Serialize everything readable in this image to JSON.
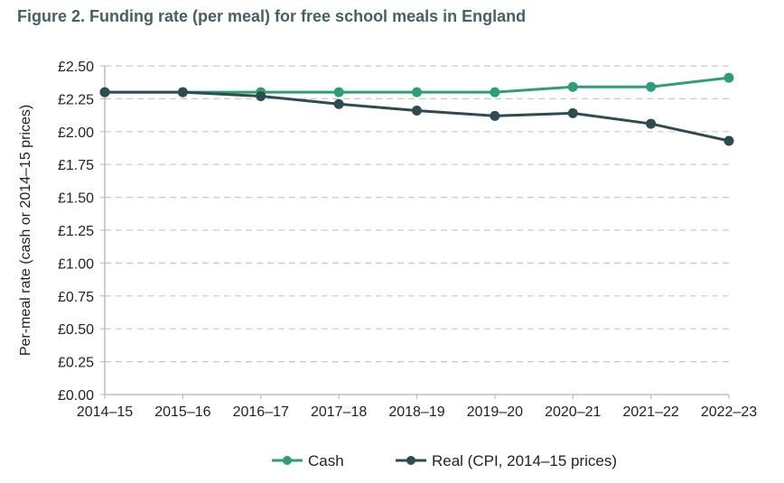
{
  "chart_data": {
    "type": "line",
    "title": "Figure 2. Funding rate (per meal) for free school meals in England",
    "xlabel": "",
    "ylabel": "Per-meal rate (cash or 2014–15 prices)",
    "categories": [
      "2014–15",
      "2015–16",
      "2016–17",
      "2017–18",
      "2018–19",
      "2019–20",
      "2020–21",
      "2021–22",
      "2022–23"
    ],
    "ylim": [
      0,
      2.5
    ],
    "yticks": [
      0,
      0.25,
      0.5,
      0.75,
      1.0,
      1.25,
      1.5,
      1.75,
      2.0,
      2.25,
      2.5
    ],
    "ytick_labels": [
      "£0.00",
      "£0.25",
      "£0.50",
      "£0.75",
      "£1.00",
      "£1.25",
      "£1.50",
      "£1.75",
      "£2.00",
      "£2.25",
      "£2.50"
    ],
    "grid": true,
    "legend_position": "bottom",
    "series": [
      {
        "name": "Cash",
        "color": "#2e9e74",
        "values": [
          2.3,
          2.3,
          2.3,
          2.3,
          2.3,
          2.3,
          2.34,
          2.34,
          2.41
        ]
      },
      {
        "name": "Real (CPI, 2014–15 prices)",
        "color": "#2f4b52",
        "values": [
          2.3,
          2.3,
          2.27,
          2.21,
          2.16,
          2.12,
          2.14,
          2.06,
          1.93
        ]
      }
    ]
  }
}
